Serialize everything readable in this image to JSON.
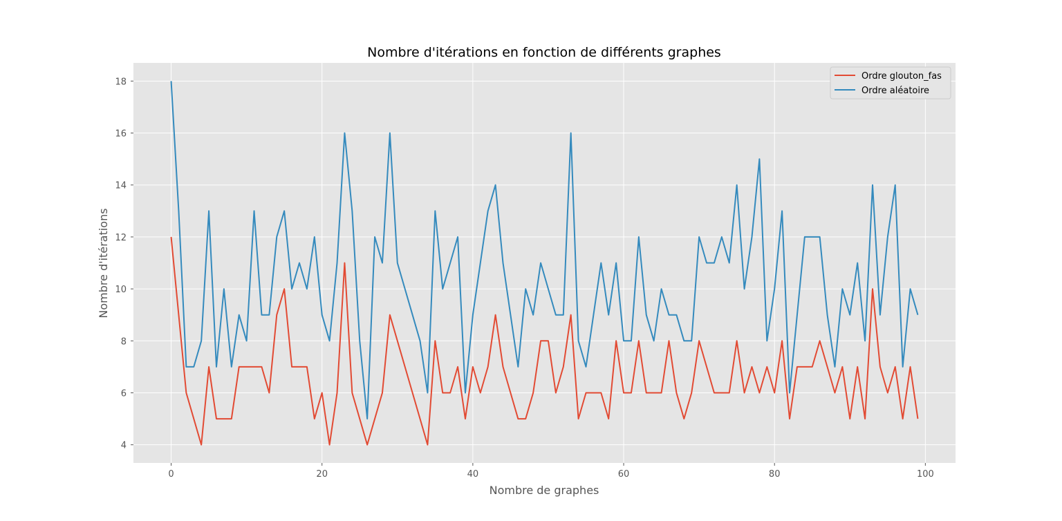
{
  "chart_data": {
    "type": "line",
    "title": "Nombre d'itérations en fonction de différents graphes",
    "xlabel": "Nombre de graphes",
    "ylabel": "Nombre d'itérations",
    "xlim": [
      -5,
      104
    ],
    "ylim": [
      3.3,
      18.7
    ],
    "xticks": [
      0,
      20,
      40,
      60,
      80,
      100
    ],
    "yticks": [
      4,
      6,
      8,
      10,
      12,
      14,
      16,
      18
    ],
    "grid": true,
    "legend_position": "top-right",
    "x": [
      0,
      1,
      2,
      3,
      4,
      5,
      6,
      7,
      8,
      9,
      10,
      11,
      12,
      13,
      14,
      15,
      16,
      17,
      18,
      19,
      20,
      21,
      22,
      23,
      24,
      25,
      26,
      27,
      28,
      29,
      30,
      31,
      32,
      33,
      34,
      35,
      36,
      37,
      38,
      39,
      40,
      41,
      42,
      43,
      44,
      45,
      46,
      47,
      48,
      49,
      50,
      51,
      52,
      53,
      54,
      55,
      56,
      57,
      58,
      59,
      60,
      61,
      62,
      63,
      64,
      65,
      66,
      67,
      68,
      69,
      70,
      71,
      72,
      73,
      74,
      75,
      76,
      77,
      78,
      79,
      80,
      81,
      82,
      83,
      84,
      85,
      86,
      87,
      88,
      89,
      90,
      91,
      92,
      93,
      94,
      95,
      96,
      97,
      98,
      99
    ],
    "series": [
      {
        "name": "Ordre glouton_fas",
        "color": "#E24A33",
        "values": [
          12,
          9,
          6,
          5,
          4,
          7,
          5,
          5,
          5,
          7,
          7,
          7,
          7,
          6,
          9,
          10,
          7,
          7,
          7,
          5,
          6,
          4,
          6,
          11,
          6,
          5,
          4,
          5,
          6,
          9,
          8,
          7,
          6,
          5,
          4,
          8,
          6,
          6,
          7,
          5,
          7,
          6,
          7,
          9,
          7,
          6,
          5,
          5,
          6,
          8,
          8,
          6,
          7,
          9,
          5,
          6,
          6,
          6,
          5,
          8,
          6,
          6,
          8,
          6,
          6,
          6,
          8,
          6,
          5,
          6,
          8,
          7,
          6,
          6,
          6,
          8,
          6,
          7,
          6,
          7,
          6,
          8,
          5,
          7,
          7,
          7,
          8,
          7,
          6,
          7,
          5,
          7,
          5,
          10,
          7,
          6,
          7,
          5,
          7,
          5
        ]
      },
      {
        "name": "Ordre aléatoire",
        "color": "#348ABD",
        "values": [
          18,
          13,
          7,
          7,
          8,
          13,
          7,
          10,
          7,
          9,
          8,
          13,
          9,
          9,
          12,
          13,
          10,
          11,
          10,
          12,
          9,
          8,
          11,
          16,
          13,
          8,
          5,
          12,
          11,
          16,
          11,
          10,
          9,
          8,
          6,
          13,
          10,
          11,
          12,
          6,
          9,
          11,
          13,
          14,
          11,
          9,
          7,
          10,
          9,
          11,
          10,
          9,
          9,
          16,
          8,
          7,
          9,
          11,
          9,
          11,
          8,
          8,
          12,
          9,
          8,
          10,
          9,
          9,
          8,
          8,
          12,
          11,
          11,
          12,
          11,
          14,
          10,
          12,
          15,
          8,
          10,
          13,
          6,
          9,
          12,
          12,
          12,
          9,
          7,
          10,
          9,
          11,
          8,
          14,
          9,
          12,
          14,
          7,
          10,
          9
        ]
      }
    ]
  }
}
